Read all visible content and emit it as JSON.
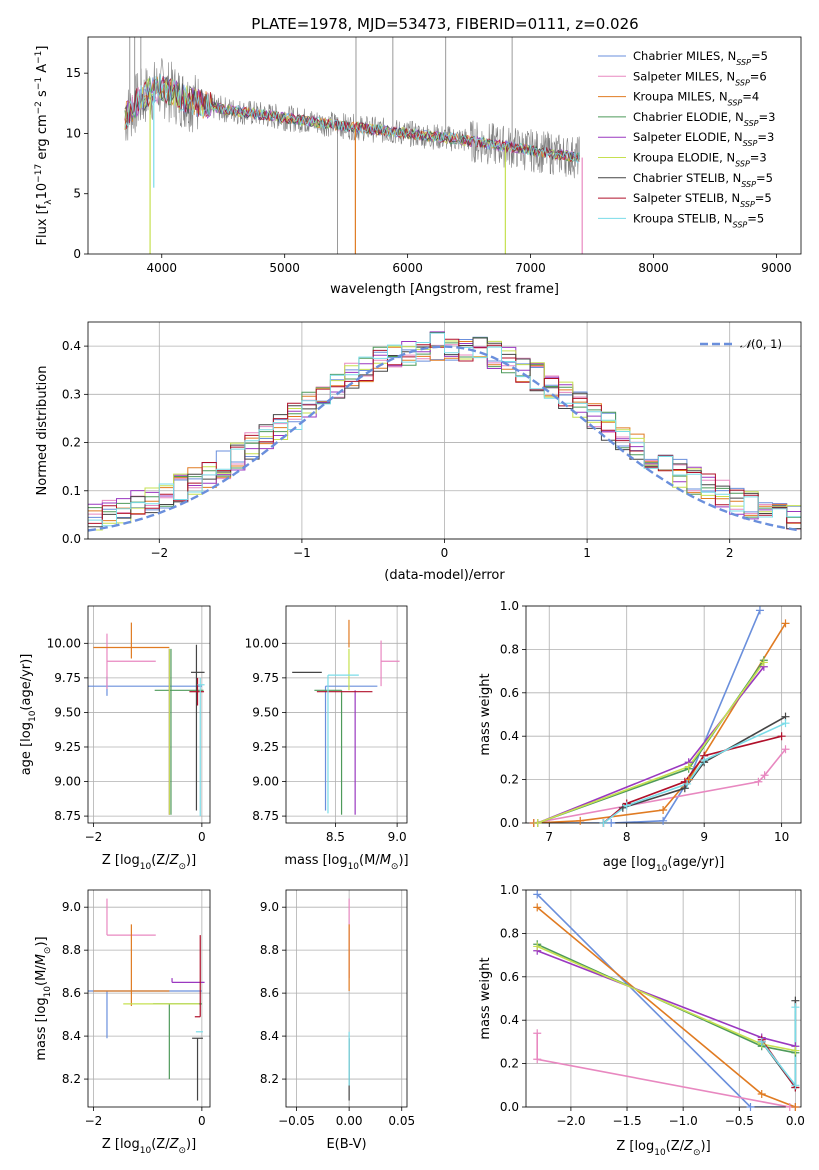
{
  "figure": {
    "title": "PLATE=1978, MJD=53473, FIBERID=0111, z=0.026"
  },
  "colors": {
    "Chabrier MILES": "#6a8fdc",
    "Salpeter MILES": "#e888c0",
    "Kroupa MILES": "#e07b22",
    "Chabrier ELODIE": "#4e9a5a",
    "Salpeter ELODIE": "#9a38c0",
    "Kroupa ELODIE": "#c6e050",
    "Chabrier STELIB": "#454545",
    "Salpeter STELIB": "#b0102a",
    "Kroupa STELIB": "#7adce8",
    "data": "#808080",
    "normal": "#6a8fdc"
  },
  "chart_data": [
    {
      "id": "spectrum",
      "type": "line",
      "title": "PLATE=1978, MJD=53473, FIBERID=0111, z=0.026",
      "xlabel": "wavelength [Angstrom, rest frame]",
      "ylabel": "Flux [f_λ 10^-17 erg cm^-2 s^-1 A^-1]",
      "xlim": [
        3400,
        9200
      ],
      "ylim": [
        0,
        18
      ],
      "xticks": [
        4000,
        5000,
        6000,
        7000,
        8000,
        9000
      ],
      "yticks": [
        0,
        5,
        10,
        15
      ],
      "grid": false,
      "legend_position": "top-right",
      "legend": [
        {
          "name": "Chabrier MILES",
          "nssp": "5"
        },
        {
          "name": "Salpeter MILES",
          "nssp": "6"
        },
        {
          "name": "Kroupa MILES",
          "nssp": "4"
        },
        {
          "name": "Chabrier ELODIE",
          "nssp": "3"
        },
        {
          "name": "Salpeter ELODIE",
          "nssp": "3"
        },
        {
          "name": "Kroupa ELODIE",
          "nssp": "3"
        },
        {
          "name": "Chabrier STELIB",
          "nssp": "5"
        },
        {
          "name": "Salpeter STELIB",
          "nssp": "5"
        },
        {
          "name": "Kroupa STELIB",
          "nssp": "5"
        }
      ],
      "continuum": {
        "x": [
          3700,
          3800,
          3900,
          4000,
          4200,
          4500,
          5000,
          5500,
          6000,
          6500,
          7000,
          7400
        ],
        "y": [
          11.3,
          12.6,
          13.4,
          13.8,
          12.8,
          12.0,
          11.3,
          10.6,
          10.0,
          9.4,
          8.6,
          8.0
        ]
      },
      "model_spikes": [
        {
          "x": 3905,
          "y": 0
        },
        {
          "x": 3935,
          "y": 5.5
        },
        {
          "x": 5575,
          "y": 0
        },
        {
          "x": 6795,
          "y": 0
        },
        {
          "x": 7420,
          "y": 0
        }
      ],
      "data_spikes": [
        {
          "x": 3740,
          "y": 18
        },
        {
          "x": 3780,
          "y": 18
        },
        {
          "x": 3830,
          "y": 18
        },
        {
          "x": 5430,
          "y": 0
        },
        {
          "x": 5580,
          "y": 18
        },
        {
          "x": 5880,
          "y": 18
        },
        {
          "x": 6310,
          "y": 18
        },
        {
          "x": 6850,
          "y": 18
        }
      ]
    },
    {
      "id": "residuals",
      "type": "histogram",
      "xlabel": "(data-model)/error",
      "ylabel": "Normed distribution",
      "xlim": [
        -2.5,
        2.5
      ],
      "ylim": [
        0,
        0.45
      ],
      "xticks": [
        -2,
        -1,
        0,
        1,
        2
      ],
      "yticks": [
        0.0,
        0.1,
        0.2,
        0.3,
        0.4
      ],
      "grid": true,
      "legend_position": "top-right",
      "reference": {
        "name": "N(0,1)",
        "mu": 0,
        "sigma": 1
      },
      "bin_width": 0.1,
      "amplitude": 0.38,
      "sigma": 1.0
    },
    {
      "id": "age-vs-Z",
      "type": "errorbar",
      "xlabel": "Z [log10(Z/Z_sun)]",
      "ylabel": "age [log10(age/yr)]",
      "xlim": [
        -2.1,
        0.15
      ],
      "ylim": [
        8.7,
        10.27
      ],
      "xticks": [
        -2,
        0
      ],
      "yticks": [
        8.75,
        9.0,
        9.25,
        9.5,
        9.75,
        10.0
      ],
      "grid": true,
      "points": [
        {
          "model": "Chabrier MILES",
          "x": -1.75,
          "xerr": [
            0.55,
            1.75
          ],
          "y": 9.69,
          "yerr": [
            0.07,
            0.07
          ]
        },
        {
          "model": "Salpeter MILES",
          "x": -1.75,
          "xerr": [
            0.0,
            0.9
          ],
          "y": 9.87,
          "yerr": [
            0.2,
            0.2
          ]
        },
        {
          "model": "Kroupa MILES",
          "x": -1.3,
          "xerr": [
            0.7,
            0.7
          ],
          "y": 9.97,
          "yerr": [
            0.08,
            0.18
          ]
        },
        {
          "model": "Chabrier ELODIE",
          "x": -0.57,
          "xerr": [
            0.3,
            0.6
          ],
          "y": 9.66,
          "yerr": [
            0.9,
            0.3
          ]
        },
        {
          "model": "Salpeter ELODIE",
          "x": -0.6,
          "xerr": [
            0.0,
            0.0
          ],
          "y": 9.66,
          "yerr": [
            0.9,
            0.3
          ]
        },
        {
          "model": "Kroupa ELODIE",
          "x": -0.6,
          "xerr": [
            0.0,
            0.0
          ],
          "y": 9.66,
          "yerr": [
            0.9,
            0.3
          ]
        },
        {
          "model": "Chabrier STELIB",
          "x": -0.1,
          "xerr": [
            0.1,
            0.15
          ],
          "y": 9.79,
          "yerr": [
            1.0,
            0.2
          ]
        },
        {
          "model": "Salpeter STELIB",
          "x": -0.08,
          "xerr": [
            0.15,
            0.12
          ],
          "y": 9.65,
          "yerr": [
            0.1,
            0.1
          ]
        },
        {
          "model": "Kroupa STELIB",
          "x": -0.03,
          "xerr": [
            0.05,
            0.08
          ],
          "y": 9.7,
          "yerr": [
            0.95,
            0.05
          ]
        }
      ]
    },
    {
      "id": "age-vs-mass",
      "type": "errorbar",
      "xlabel": "mass [log10(M/M_sun)]",
      "ylabel": "",
      "xlim": [
        8.1,
        9.08
      ],
      "ylim": [
        8.7,
        10.27
      ],
      "xticks": [
        8.5,
        9.0
      ],
      "yticks": [
        8.75,
        9.0,
        9.25,
        9.5,
        9.75,
        10.0
      ],
      "grid": true,
      "points": [
        {
          "model": "Chabrier MILES",
          "x": 8.42,
          "xerr": [
            0.0,
            0.42
          ],
          "y": 9.69,
          "yerr": [
            0.9,
            0.0
          ]
        },
        {
          "model": "Salpeter MILES",
          "x": 8.87,
          "xerr": [
            0.0,
            0.15
          ],
          "y": 9.87,
          "yerr": [
            0.18,
            0.15
          ]
        },
        {
          "model": "Kroupa MILES",
          "x": 8.61,
          "xerr": [
            0.0,
            0.0
          ],
          "y": 9.97,
          "yerr": [
            0.0,
            0.2
          ]
        },
        {
          "model": "Chabrier ELODIE",
          "x": 8.55,
          "xerr": [
            0.22,
            0.0
          ],
          "y": 9.66,
          "yerr": [
            0.9,
            0.0
          ]
        },
        {
          "model": "Salpeter ELODIE",
          "x": 8.66,
          "xerr": [
            0.0,
            0.0
          ],
          "y": 9.66,
          "yerr": [
            0.9,
            0.0
          ]
        },
        {
          "model": "Kroupa ELODIE",
          "x": 8.61,
          "xerr": [
            0.0,
            0.0
          ],
          "y": 9.66,
          "yerr": [
            0.0,
            0.3
          ]
        },
        {
          "model": "Chabrier STELIB",
          "x": 8.39,
          "xerr": [
            0.24,
            0.0
          ],
          "y": 9.79,
          "yerr": [
            0.0,
            0.0
          ]
        },
        {
          "model": "Salpeter STELIB",
          "x": 8.65,
          "xerr": [
            0.3,
            0.15
          ],
          "y": 9.65,
          "yerr": [
            0.0,
            0.0
          ]
        },
        {
          "model": "Kroupa STELIB",
          "x": 8.44,
          "xerr": [
            0.0,
            0.25
          ],
          "y": 9.77,
          "yerr": [
            1.0,
            0.0
          ]
        }
      ]
    },
    {
      "id": "cumulative-mass-vs-age",
      "type": "line",
      "xlabel": "age [log10(age/yr)]",
      "ylabel": "mass weight",
      "xlim": [
        6.7,
        10.25
      ],
      "ylim": [
        0,
        1.0
      ],
      "xticks": [
        7,
        8,
        9,
        10
      ],
      "yticks": [
        0.0,
        0.2,
        0.4,
        0.6,
        0.8,
        1.0
      ],
      "grid": true,
      "series": [
        {
          "model": "Chabrier MILES",
          "x": [
            6.8,
            7.8,
            8.47,
            8.8,
            9.72
          ],
          "y": [
            0.0,
            0.0,
            0.01,
            0.2,
            0.98
          ]
        },
        {
          "model": "Salpeter MILES",
          "x": [
            6.8,
            9.7,
            9.78,
            10.05
          ],
          "y": [
            0.0,
            0.19,
            0.22,
            0.34
          ]
        },
        {
          "model": "Kroupa MILES",
          "x": [
            6.8,
            7.4,
            8.47,
            8.8,
            10.05
          ],
          "y": [
            0.0,
            0.01,
            0.06,
            0.2,
            0.92
          ]
        },
        {
          "model": "Chabrier ELODIE",
          "x": [
            6.85,
            8.8,
            9.77
          ],
          "y": [
            0.0,
            0.25,
            0.75
          ]
        },
        {
          "model": "Salpeter ELODIE",
          "x": [
            6.85,
            8.8,
            9.77
          ],
          "y": [
            0.0,
            0.28,
            0.72
          ]
        },
        {
          "model": "Kroupa ELODIE",
          "x": [
            6.85,
            8.8,
            9.77
          ],
          "y": [
            0.0,
            0.26,
            0.74
          ]
        },
        {
          "model": "Chabrier STELIB",
          "x": [
            7.7,
            7.95,
            8.75,
            9.0,
            10.05
          ],
          "y": [
            0.0,
            0.07,
            0.16,
            0.28,
            0.49
          ]
        },
        {
          "model": "Salpeter STELIB",
          "x": [
            7.7,
            8.0,
            8.75,
            9.0,
            10.0
          ],
          "y": [
            0.0,
            0.09,
            0.19,
            0.31,
            0.4
          ]
        },
        {
          "model": "Kroupa STELIB",
          "x": [
            7.7,
            8.0,
            8.78,
            9.0,
            10.05
          ],
          "y": [
            0.0,
            0.08,
            0.18,
            0.29,
            0.46
          ]
        }
      ]
    },
    {
      "id": "mass-vs-Z",
      "type": "errorbar",
      "xlabel": "Z [log10(Z/Z_sun)]",
      "ylabel": "mass [log10(M/M_sun)]",
      "xlim": [
        -2.1,
        0.15
      ],
      "ylim": [
        8.07,
        9.08
      ],
      "xticks": [
        -2,
        0
      ],
      "yticks": [
        8.2,
        8.4,
        8.6,
        8.8,
        9.0
      ],
      "grid": true,
      "points": [
        {
          "model": "Chabrier MILES",
          "x": -1.75,
          "xerr": [
            0.4,
            1.75
          ],
          "y": 8.61,
          "yerr": [
            0.22,
            0.0
          ]
        },
        {
          "model": "Salpeter MILES",
          "x": -1.75,
          "xerr": [
            0.0,
            0.9
          ],
          "y": 8.87,
          "yerr": [
            0.0,
            0.17
          ]
        },
        {
          "model": "Kroupa MILES",
          "x": -1.3,
          "xerr": [
            0.7,
            0.7
          ],
          "y": 8.61,
          "yerr": [
            0.07,
            0.31
          ]
        },
        {
          "model": "Chabrier ELODIE",
          "x": -0.6,
          "xerr": [
            0.3,
            0.6
          ],
          "y": 8.55,
          "yerr": [
            0.35,
            0.0
          ]
        },
        {
          "model": "Salpeter ELODIE",
          "x": -0.55,
          "xerr": [
            0.0,
            0.6
          ],
          "y": 8.65,
          "yerr": [
            0.0,
            0.02
          ]
        },
        {
          "model": "Kroupa ELODIE",
          "x": -0.55,
          "xerr": [
            0.9,
            0.5
          ],
          "y": 8.55,
          "yerr": [
            0.0,
            0.0
          ]
        },
        {
          "model": "Chabrier STELIB",
          "x": -0.08,
          "xerr": [
            0.1,
            0.1
          ],
          "y": 8.39,
          "yerr": [
            0.29,
            0.0
          ]
        },
        {
          "model": "Salpeter STELIB",
          "x": -0.03,
          "xerr": [
            0.1,
            0.0
          ],
          "y": 8.49,
          "yerr": [
            0.0,
            0.38
          ]
        },
        {
          "model": "Kroupa STELIB",
          "x": -0.03,
          "xerr": [
            0.08,
            0.05
          ],
          "y": 8.42,
          "yerr": [
            0.0,
            0.0
          ]
        }
      ]
    },
    {
      "id": "mass-vs-ebv",
      "type": "errorbar",
      "xlabel": "E(B-V)",
      "ylabel": "",
      "xlim": [
        -0.06,
        0.055
      ],
      "ylim": [
        8.07,
        9.08
      ],
      "xticks": [
        -0.05,
        0.0,
        0.05
      ],
      "yticks": [
        8.2,
        8.4,
        8.6,
        8.8,
        9.0
      ],
      "grid": true,
      "points": [
        {
          "model": "Salpeter MILES",
          "x": 0.0,
          "xerr": [
            0.0,
            0.0
          ],
          "y": 8.87,
          "yerr": [
            0.2,
            0.17
          ]
        },
        {
          "model": "Kroupa MILES",
          "x": 0.0,
          "xerr": [
            0.0,
            0.0
          ],
          "y": 8.61,
          "yerr": [
            0.0,
            0.31
          ]
        },
        {
          "model": "Chabrier STELIB",
          "x": 0.0,
          "xerr": [
            0.0,
            0.0
          ],
          "y": 8.39,
          "yerr": [
            0.29,
            0.0
          ]
        },
        {
          "model": "Kroupa STELIB",
          "x": 0.0,
          "xerr": [
            0.0,
            0.0
          ],
          "y": 8.42,
          "yerr": [
            0.25,
            0.0
          ]
        }
      ]
    },
    {
      "id": "cumulative-mass-vs-Z",
      "type": "line",
      "xlabel": "Z [log10(Z/Z_sun)]",
      "ylabel": "mass weight",
      "xlim": [
        -2.4,
        0.05
      ],
      "ylim": [
        0,
        1.0
      ],
      "xticks": [
        -2.0,
        -1.5,
        -1.0,
        -0.5,
        0.0
      ],
      "yticks": [
        0.0,
        0.2,
        0.4,
        0.6,
        0.8,
        1.0
      ],
      "grid": true,
      "series": [
        {
          "model": "Chabrier MILES",
          "x": [
            -2.3,
            -0.4,
            0.0
          ],
          "y": [
            0.98,
            0.0,
            0.0
          ]
        },
        {
          "model": "Salpeter MILES",
          "x": [
            -2.3,
            -2.3,
            -0.05,
            -0.0
          ],
          "y": [
            0.34,
            0.22,
            0.0,
            0.0
          ]
        },
        {
          "model": "Kroupa MILES",
          "x": [
            -2.3,
            -0.3,
            -0.0
          ],
          "y": [
            0.92,
            0.06,
            0.0
          ]
        },
        {
          "model": "Chabrier ELODIE",
          "x": [
            -2.3,
            -0.3,
            -0.0
          ],
          "y": [
            0.75,
            0.28,
            0.25
          ]
        },
        {
          "model": "Salpeter ELODIE",
          "x": [
            -2.3,
            -0.3,
            -0.0
          ],
          "y": [
            0.72,
            0.32,
            0.28
          ]
        },
        {
          "model": "Kroupa ELODIE",
          "x": [
            -2.3,
            -0.3,
            -0.0
          ],
          "y": [
            0.74,
            0.29,
            0.26
          ]
        },
        {
          "model": "Chabrier STELIB",
          "x": [
            -0.3,
            -0.0,
            -0.0
          ],
          "y": [
            0.3,
            0.09,
            0.49
          ]
        },
        {
          "model": "Salpeter STELIB",
          "x": [
            -0.3,
            -0.0
          ],
          "y": [
            0.31,
            0.09
          ]
        },
        {
          "model": "Kroupa STELIB",
          "x": [
            -0.3,
            -0.0,
            -0.0
          ],
          "y": [
            0.3,
            0.1,
            0.46
          ]
        }
      ]
    }
  ]
}
